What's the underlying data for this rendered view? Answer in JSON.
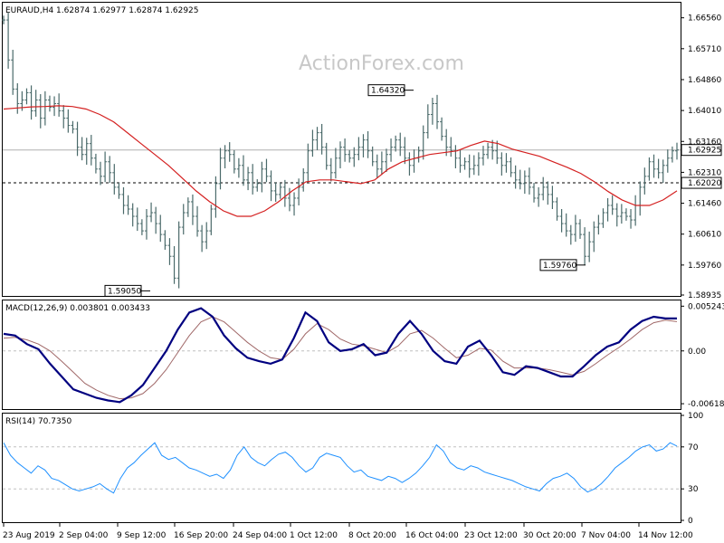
{
  "watermark": "ActionForex.com",
  "chart_data": [
    {
      "type": "candlestick",
      "title": "EURAUD,H4 1.62874 1.62977 1.62874 1.62925",
      "symbol": "EURAUD",
      "timeframe": "H4",
      "ohlc_last": [
        1.62874,
        1.62977,
        1.62874,
        1.62925
      ],
      "ylim": [
        1.58935,
        1.6695
      ],
      "y_ticks": [
        "1.66560",
        "1.65710",
        "1.64860",
        "1.64010",
        "1.63160",
        "1.62310",
        "1.61460",
        "1.60610",
        "1.59760",
        "1.58935"
      ],
      "x_ticks": [
        "23 Aug 2019",
        "2 Sep 04:00",
        "9 Sep 12:00",
        "16 Sep 20:00",
        "24 Sep 04:00",
        "1 Oct 12:00",
        "8 Oct 20:00",
        "16 Oct 04:00",
        "23 Oct 12:00",
        "30 Oct 20:00",
        "7 Nov 04:00",
        "14 Nov 12:00"
      ],
      "close_path": [
        1.665,
        1.654,
        1.646,
        1.642,
        1.643,
        1.645,
        1.64,
        1.643,
        1.638,
        1.643,
        1.641,
        1.642,
        1.64,
        1.638,
        1.636,
        1.635,
        1.63,
        1.628,
        1.631,
        1.627,
        1.624,
        1.622,
        1.626,
        1.623,
        1.619,
        1.617,
        1.614,
        1.613,
        1.611,
        1.609,
        1.607,
        1.611,
        1.612,
        1.609,
        1.606,
        1.603,
        1.6,
        1.594,
        1.608,
        1.612,
        1.615,
        1.611,
        1.607,
        1.604,
        1.607,
        1.613,
        1.62,
        1.627,
        1.629,
        1.628,
        1.624,
        1.625,
        1.621,
        1.623,
        1.619,
        1.62,
        1.624,
        1.622,
        1.618,
        1.617,
        1.619,
        1.616,
        1.614,
        1.616,
        1.619,
        1.623,
        1.629,
        1.632,
        1.634,
        1.63,
        1.625,
        1.623,
        1.627,
        1.63,
        1.628,
        1.627,
        1.628,
        1.63,
        1.632,
        1.629,
        1.626,
        1.624,
        1.626,
        1.628,
        1.63,
        1.632,
        1.63,
        1.627,
        1.625,
        1.627,
        1.629,
        1.634,
        1.639,
        1.642,
        1.637,
        1.633,
        1.63,
        1.629,
        1.627,
        1.625,
        1.626,
        1.624,
        1.625,
        1.627,
        1.628,
        1.63,
        1.629,
        1.627,
        1.625,
        1.626,
        1.623,
        1.621,
        1.62,
        1.622,
        1.619,
        1.616,
        1.617,
        1.619,
        1.617,
        1.615,
        1.611,
        1.609,
        1.607,
        1.606,
        1.609,
        1.606,
        1.6,
        1.604,
        1.608,
        1.609,
        1.612,
        1.614,
        1.613,
        1.611,
        1.612,
        1.611,
        1.61,
        1.614,
        1.619,
        1.622,
        1.626,
        1.624,
        1.623,
        1.625,
        1.627,
        1.629,
        1.62925
      ],
      "ma_path": [
        1.6405,
        1.6408,
        1.6411,
        1.6412,
        1.6414,
        1.6412,
        1.6405,
        1.639,
        1.637,
        1.634,
        1.631,
        1.628,
        1.625,
        1.6215,
        1.618,
        1.615,
        1.6125,
        1.611,
        1.611,
        1.6125,
        1.615,
        1.618,
        1.6205,
        1.621,
        1.621,
        1.6205,
        1.62,
        1.621,
        1.624,
        1.626,
        1.627,
        1.628,
        1.6285,
        1.629,
        1.6305,
        1.6317,
        1.631,
        1.6295,
        1.6285,
        1.6275,
        1.626,
        1.6245,
        1.6228,
        1.6205,
        1.6178,
        1.6155,
        1.614,
        1.614,
        1.6155,
        1.618
      ],
      "annotations": [
        {
          "label": "1.59050",
          "value": 1.5905
        },
        {
          "label": "1.64320",
          "value": 1.6432
        },
        {
          "label": "1.59760",
          "value": 1.5976
        }
      ],
      "current_price": "1.62925",
      "hline_label": "1.62020",
      "hline_value": 1.6202,
      "colors": {
        "bars": "#4a6a6a",
        "ma": "#d42020",
        "price_box": "#ffffff"
      }
    },
    {
      "type": "line",
      "title": "MACD(12,26,9) 0.003801 0.003433",
      "ylim": [
        -0.0066,
        0.0057
      ],
      "y_ticks": [
        "0.005243",
        "0.00",
        "-0.006186"
      ],
      "series": [
        {
          "name": "MACD",
          "color": "#000080",
          "values": [
            0.002,
            0.0018,
            0.0008,
            0.0002,
            -0.0015,
            -0.003,
            -0.0045,
            -0.005,
            -0.0055,
            -0.0058,
            -0.006,
            -0.0052,
            -0.004,
            -0.002,
            0.0,
            0.0025,
            0.0045,
            0.005,
            0.004,
            0.0018,
            0.0003,
            -0.0008,
            -0.0012,
            -0.0015,
            -0.001,
            0.0015,
            0.0045,
            0.0035,
            0.001,
            0.0,
            0.0002,
            0.0008,
            -0.0005,
            -0.0002,
            0.002,
            0.0035,
            0.002,
            0.0,
            -0.0012,
            -0.0015,
            0.0005,
            0.0012,
            -0.0005,
            -0.0025,
            -0.0028,
            -0.0018,
            -0.002,
            -0.0025,
            -0.003,
            -0.003,
            -0.0018,
            -0.0005,
            0.0005,
            0.001,
            0.0025,
            0.0035,
            0.004,
            0.0038,
            0.003801
          ]
        },
        {
          "name": "Signal",
          "color": "#a06868",
          "values": [
            0.0015,
            0.0016,
            0.0013,
            0.0008,
            0.0,
            -0.0012,
            -0.0025,
            -0.0038,
            -0.0046,
            -0.0052,
            -0.0056,
            -0.0055,
            -0.005,
            -0.0038,
            -0.0022,
            -0.0002,
            0.0018,
            0.0034,
            0.004,
            0.0034,
            0.0022,
            0.001,
            0.0,
            -0.0008,
            -0.001,
            0.0002,
            0.002,
            0.0032,
            0.0025,
            0.0014,
            0.0008,
            0.0006,
            0.0002,
            -0.0002,
            0.0006,
            0.002,
            0.0024,
            0.0015,
            0.0003,
            -0.0008,
            -0.0005,
            0.0003,
            0.0001,
            -0.0012,
            -0.002,
            -0.002,
            -0.002,
            -0.0022,
            -0.0025,
            -0.0028,
            -0.0024,
            -0.0015,
            -0.0005,
            0.0004,
            0.0014,
            0.0025,
            0.0033,
            0.0036,
            0.003433
          ]
        }
      ]
    },
    {
      "type": "line",
      "title": "RSI(14) 70.7350",
      "ylim": [
        0,
        100
      ],
      "y_ticks": [
        "100",
        "70",
        "30",
        "0"
      ],
      "levels": [
        70,
        30
      ],
      "series": [
        {
          "name": "RSI",
          "color": "#1e90ff",
          "values": [
            74,
            62,
            55,
            50,
            45,
            52,
            48,
            40,
            38,
            34,
            30,
            28,
            30,
            32,
            35,
            30,
            26,
            40,
            50,
            55,
            62,
            68,
            74,
            62,
            58,
            60,
            55,
            50,
            48,
            45,
            42,
            44,
            40,
            48,
            62,
            70,
            60,
            55,
            52,
            58,
            63,
            65,
            60,
            52,
            46,
            50,
            60,
            64,
            62,
            60,
            52,
            46,
            48,
            42,
            40,
            38,
            42,
            40,
            36,
            40,
            45,
            52,
            60,
            72,
            66,
            55,
            50,
            48,
            52,
            50,
            46,
            44,
            42,
            40,
            38,
            35,
            32,
            30,
            28,
            35,
            40,
            42,
            45,
            40,
            32,
            27,
            30,
            35,
            42,
            50,
            55,
            60,
            66,
            70,
            72,
            66,
            68,
            74,
            70.735
          ]
        }
      ]
    }
  ]
}
